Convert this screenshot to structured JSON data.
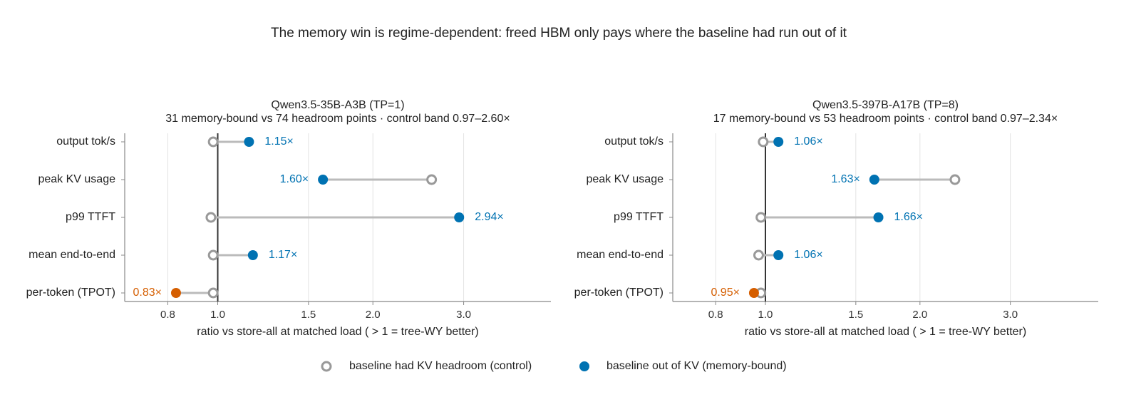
{
  "title": "The memory win is regime-dependent: freed HBM only pays where the baseline had run out of it",
  "chart_data": [
    {
      "type": "dumbbell",
      "title": "Qwen3.5-35B-A3B (TP=1)",
      "subtitle": "31 memory-bound vs 74 headroom points  ·  control band 0.97–2.60×",
      "x_label": "ratio vs store-all at matched load   ( > 1 = tree-WY better)",
      "log_x": true,
      "xlim": [
        0.66,
        4.43
      ],
      "xticks": [
        0.8,
        {
          "value": 1,
          "label": "1.0"
        },
        1.5,
        {
          "value": 2,
          "label": "2.0"
        },
        {
          "value": 3,
          "label": "3.0"
        }
      ],
      "reference_line": 1,
      "grid": true,
      "categories": [
        "output tok/s",
        "peak KV usage",
        "p99 TTFT",
        "mean end-to-end",
        "per-token (TPOT)"
      ],
      "series": [
        {
          "name": "baseline had KV headroom (control)",
          "color": "#999999",
          "values": [
            0.98,
            2.6,
            0.97,
            0.98,
            0.98
          ]
        },
        {
          "name": "baseline out of KV (memory-bound)",
          "color": "#0072b2",
          "values": [
            1.15,
            1.6,
            2.94,
            1.17,
            0.83
          ],
          "value_labels": [
            "1.15×",
            "1.60×",
            "2.94×",
            "1.17×",
            "0.83×"
          ],
          "colors": [
            "#0072b2",
            "#0072b2",
            "#0072b2",
            "#0072b2",
            "#d55e00"
          ]
        }
      ]
    },
    {
      "type": "dumbbell",
      "title": "Qwen3.5-397B-A17B (TP=8)",
      "subtitle": "17 memory-bound vs 53 headroom points  ·  control band 0.97–2.34×",
      "x_label": "ratio vs store-all at matched load   ( > 1 = tree-WY better)",
      "log_x": true,
      "xlim": [
        0.66,
        4.45
      ],
      "xticks": [
        0.8,
        {
          "value": 1,
          "label": "1.0"
        },
        1.5,
        {
          "value": 2,
          "label": "2.0"
        },
        {
          "value": 3,
          "label": "3.0"
        }
      ],
      "reference_line": 1,
      "grid": true,
      "categories": [
        "output tok/s",
        "peak KV usage",
        "p99 TTFT",
        "mean end-to-end",
        "per-token (TPOT)"
      ],
      "series": [
        {
          "color": "#999999",
          "values": [
            0.99,
            2.34,
            0.98,
            0.97,
            0.98
          ]
        },
        {
          "values": [
            1.06,
            1.63,
            1.66,
            1.06,
            0.95
          ],
          "value_labels": [
            "1.06×",
            "1.63×",
            "1.66×",
            "1.06×",
            "0.95×"
          ],
          "colors": [
            "#0072b2",
            "#0072b2",
            "#0072b2",
            "#0072b2",
            "#d55e00"
          ]
        }
      ]
    }
  ]
}
